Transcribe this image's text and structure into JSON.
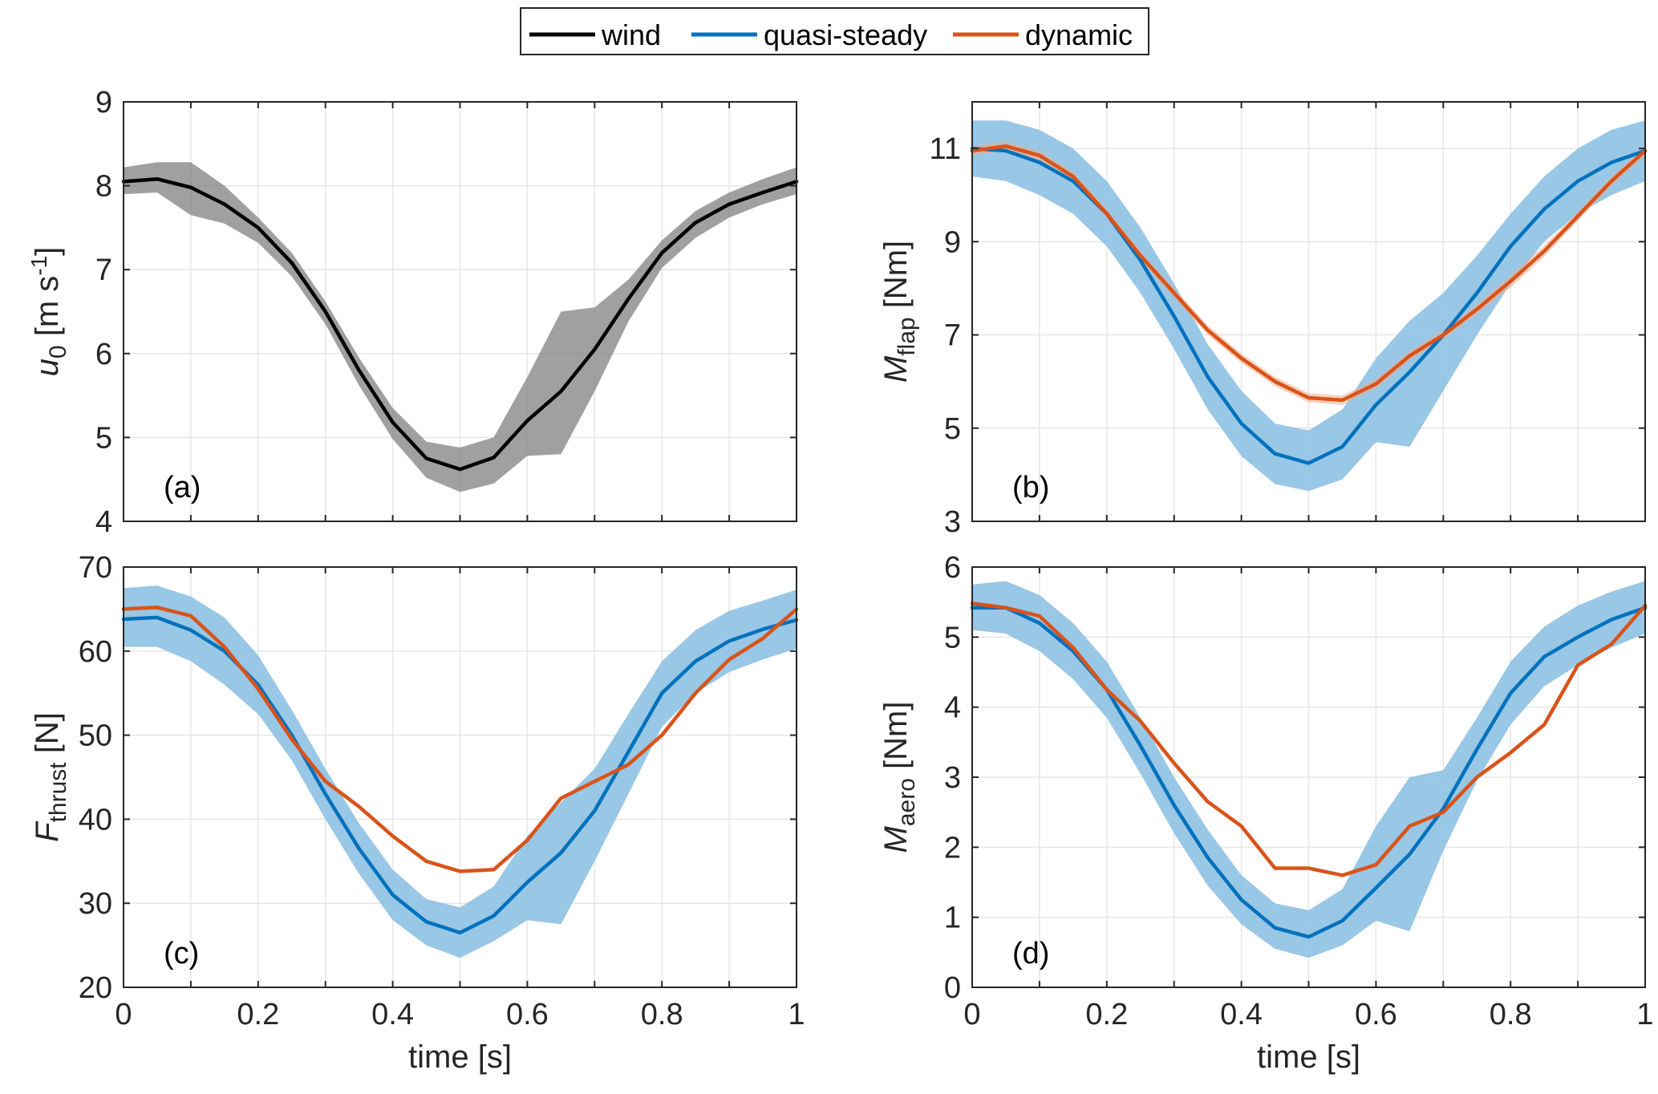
{
  "legend": {
    "location": "top-center",
    "entries": [
      {
        "key": "wind",
        "label": "wind",
        "color": "#000000"
      },
      {
        "key": "qs",
        "label": "quasi-steady",
        "color": "#0072BD"
      },
      {
        "key": "dyn",
        "label": "dynamic",
        "color": "#D95319"
      }
    ]
  },
  "colors": {
    "wind_band": "#808080",
    "qs_band": "#8EC1E3",
    "dyn_band": "#F2A98A",
    "grid": "#E6E6E6",
    "axis": "#262626"
  },
  "chart_data": [
    {
      "id": "a",
      "type": "line",
      "panel_label": "(a)",
      "ylabel": {
        "main": "u",
        "sub": "0",
        "unit_pre": " [m s",
        "sup": "-1",
        "unit_post": "]"
      },
      "xlabel": "",
      "xlim": [
        0,
        1
      ],
      "ylim": [
        4,
        9
      ],
      "xticks": [
        0,
        0.1,
        0.2,
        0.3,
        0.4,
        0.5,
        0.6,
        0.7,
        0.8,
        0.9,
        1
      ],
      "xtick_labels": [],
      "yticks": [
        4,
        5,
        6,
        7,
        8,
        9
      ],
      "ytick_labels": [
        "4",
        "5",
        "6",
        "7",
        "8",
        "9"
      ],
      "grid": true,
      "series": [
        {
          "name": "wind",
          "key": "wind",
          "x": [
            0,
            0.05,
            0.1,
            0.15,
            0.2,
            0.25,
            0.3,
            0.35,
            0.4,
            0.45,
            0.5,
            0.55,
            0.6,
            0.65,
            0.7,
            0.75,
            0.8,
            0.85,
            0.9,
            0.95,
            1
          ],
          "y": [
            8.05,
            8.08,
            7.98,
            7.78,
            7.5,
            7.08,
            6.5,
            5.8,
            5.18,
            4.75,
            4.62,
            4.76,
            5.2,
            5.55,
            6.05,
            6.65,
            7.2,
            7.56,
            7.78,
            7.92,
            8.05
          ],
          "band_upper": [
            8.22,
            8.28,
            8.28,
            8.0,
            7.62,
            7.2,
            6.62,
            5.95,
            5.35,
            4.95,
            4.88,
            5.0,
            5.72,
            6.5,
            6.55,
            6.88,
            7.35,
            7.7,
            7.92,
            8.08,
            8.22
          ],
          "band_lower": [
            7.9,
            7.92,
            7.65,
            7.55,
            7.32,
            6.92,
            6.35,
            5.62,
            4.98,
            4.52,
            4.35,
            4.45,
            4.78,
            4.8,
            5.55,
            6.38,
            7.02,
            7.38,
            7.62,
            7.78,
            7.9
          ]
        }
      ]
    },
    {
      "id": "b",
      "type": "line",
      "panel_label": "(b)",
      "ylabel": {
        "main": "M",
        "sub": "flap",
        "unit_pre": " [Nm]",
        "sup": "",
        "unit_post": ""
      },
      "xlabel": "",
      "xlim": [
        0,
        1
      ],
      "ylim": [
        3,
        12
      ],
      "xticks": [
        0,
        0.1,
        0.2,
        0.3,
        0.4,
        0.5,
        0.6,
        0.7,
        0.8,
        0.9,
        1
      ],
      "xtick_labels": [],
      "yticks": [
        3,
        5,
        7,
        9,
        11
      ],
      "ytick_labels": [
        "3",
        "5",
        "7",
        "9",
        "11"
      ],
      "grid": true,
      "series": [
        {
          "name": "quasi-steady",
          "key": "qs",
          "x": [
            0,
            0.05,
            0.1,
            0.15,
            0.2,
            0.25,
            0.3,
            0.35,
            0.4,
            0.45,
            0.5,
            0.55,
            0.6,
            0.65,
            0.7,
            0.75,
            0.8,
            0.85,
            0.9,
            0.95,
            1
          ],
          "y": [
            11.0,
            10.95,
            10.7,
            10.3,
            9.6,
            8.6,
            7.4,
            6.1,
            5.1,
            4.45,
            4.25,
            4.6,
            5.5,
            6.2,
            7.0,
            7.9,
            8.9,
            9.7,
            10.3,
            10.7,
            10.95
          ],
          "band_upper": [
            11.6,
            11.6,
            11.4,
            11.0,
            10.3,
            9.3,
            8.1,
            6.8,
            5.8,
            5.1,
            4.95,
            5.4,
            6.5,
            7.3,
            7.9,
            8.7,
            9.6,
            10.4,
            11.0,
            11.4,
            11.6
          ],
          "band_lower": [
            10.4,
            10.3,
            10.0,
            9.6,
            8.9,
            7.9,
            6.7,
            5.4,
            4.4,
            3.8,
            3.65,
            3.9,
            4.7,
            4.6,
            5.8,
            7.0,
            8.1,
            9.0,
            9.6,
            10.0,
            10.3
          ]
        },
        {
          "name": "dynamic",
          "key": "dyn",
          "x": [
            0,
            0.05,
            0.1,
            0.15,
            0.2,
            0.25,
            0.3,
            0.35,
            0.4,
            0.45,
            0.5,
            0.55,
            0.6,
            0.65,
            0.7,
            0.75,
            0.8,
            0.85,
            0.9,
            0.95,
            1
          ],
          "y": [
            10.95,
            11.05,
            10.85,
            10.4,
            9.6,
            8.7,
            7.9,
            7.1,
            6.5,
            6.0,
            5.65,
            5.6,
            5.95,
            6.55,
            7.0,
            7.55,
            8.15,
            8.8,
            9.55,
            10.3,
            10.95
          ],
          "band_upper": [
            11.05,
            11.15,
            10.95,
            10.5,
            9.7,
            8.8,
            8.0,
            7.2,
            6.6,
            6.1,
            5.75,
            5.7,
            6.05,
            6.65,
            7.1,
            7.65,
            8.28,
            8.92,
            9.65,
            10.4,
            11.05
          ],
          "band_lower": [
            10.85,
            10.95,
            10.75,
            10.3,
            9.5,
            8.6,
            7.8,
            7.0,
            6.4,
            5.9,
            5.55,
            5.5,
            5.85,
            6.45,
            6.9,
            7.45,
            8.02,
            8.68,
            9.45,
            10.2,
            10.85
          ]
        }
      ]
    },
    {
      "id": "c",
      "type": "line",
      "panel_label": "(c)",
      "ylabel": {
        "main": "F",
        "sub": "thrust",
        "unit_pre": " [N]",
        "sup": "",
        "unit_post": ""
      },
      "xlabel": "time [s]",
      "xlim": [
        0,
        1
      ],
      "ylim": [
        20,
        70
      ],
      "xticks": [
        0,
        0.1,
        0.2,
        0.3,
        0.4,
        0.5,
        0.6,
        0.7,
        0.8,
        0.9,
        1
      ],
      "xtick_labels": [
        "0",
        "",
        "0.2",
        "",
        "0.4",
        "",
        "0.6",
        "",
        "0.8",
        "",
        "1"
      ],
      "yticks": [
        20,
        30,
        40,
        50,
        60,
        70
      ],
      "ytick_labels": [
        "20",
        "30",
        "40",
        "50",
        "60",
        "70"
      ],
      "grid": true,
      "series": [
        {
          "name": "quasi-steady",
          "key": "qs",
          "x": [
            0,
            0.05,
            0.1,
            0.15,
            0.2,
            0.25,
            0.3,
            0.35,
            0.4,
            0.45,
            0.5,
            0.55,
            0.6,
            0.65,
            0.7,
            0.75,
            0.8,
            0.85,
            0.9,
            0.95,
            1
          ],
          "y": [
            63.8,
            64.0,
            62.5,
            60.0,
            56.0,
            50.0,
            43.0,
            36.5,
            31.0,
            27.8,
            26.5,
            28.5,
            32.5,
            36.0,
            41.0,
            48.0,
            55.0,
            58.8,
            61.2,
            62.6,
            63.7
          ],
          "band_upper": [
            67.5,
            67.8,
            66.5,
            64.0,
            59.5,
            53.0,
            46.0,
            39.5,
            34.0,
            30.5,
            29.5,
            32.0,
            38.0,
            42.0,
            46.0,
            52.5,
            58.8,
            62.5,
            64.8,
            66.0,
            67.3
          ],
          "band_lower": [
            60.5,
            60.5,
            58.8,
            56.0,
            52.5,
            47.0,
            40.0,
            33.5,
            28.0,
            25.0,
            23.5,
            25.5,
            28.0,
            27.5,
            35.0,
            43.0,
            51.0,
            55.0,
            57.5,
            59.0,
            60.3
          ]
        },
        {
          "name": "dynamic",
          "key": "dyn",
          "x": [
            0,
            0.05,
            0.1,
            0.15,
            0.2,
            0.25,
            0.3,
            0.35,
            0.4,
            0.45,
            0.5,
            0.55,
            0.6,
            0.65,
            0.7,
            0.75,
            0.8,
            0.85,
            0.9,
            0.95,
            1
          ],
          "y": [
            65.0,
            65.2,
            64.2,
            60.5,
            55.5,
            49.5,
            44.5,
            41.5,
            38.0,
            35.0,
            33.8,
            34.0,
            37.5,
            42.5,
            44.5,
            46.5,
            50.0,
            55.0,
            59.0,
            61.5,
            65.0
          ]
        }
      ]
    },
    {
      "id": "d",
      "type": "line",
      "panel_label": "(d)",
      "ylabel": {
        "main": "M",
        "sub": "aero",
        "unit_pre": " [Nm]",
        "sup": "",
        "unit_post": ""
      },
      "xlabel": "time [s]",
      "xlim": [
        0,
        1
      ],
      "ylim": [
        0,
        6
      ],
      "xticks": [
        0,
        0.1,
        0.2,
        0.3,
        0.4,
        0.5,
        0.6,
        0.7,
        0.8,
        0.9,
        1
      ],
      "xtick_labels": [
        "0",
        "",
        "0.2",
        "",
        "0.4",
        "",
        "0.6",
        "",
        "0.8",
        "",
        "1"
      ],
      "yticks": [
        0,
        1,
        2,
        3,
        4,
        5,
        6
      ],
      "ytick_labels": [
        "0",
        "1",
        "2",
        "3",
        "4",
        "5",
        "6"
      ],
      "grid": true,
      "series": [
        {
          "name": "quasi-steady",
          "key": "qs",
          "x": [
            0,
            0.05,
            0.1,
            0.15,
            0.2,
            0.25,
            0.3,
            0.35,
            0.4,
            0.45,
            0.5,
            0.55,
            0.6,
            0.65,
            0.7,
            0.75,
            0.8,
            0.85,
            0.9,
            0.95,
            1
          ],
          "y": [
            5.42,
            5.42,
            5.2,
            4.8,
            4.25,
            3.45,
            2.6,
            1.85,
            1.25,
            0.85,
            0.72,
            0.95,
            1.42,
            1.9,
            2.55,
            3.4,
            4.2,
            4.72,
            5.0,
            5.25,
            5.42
          ],
          "band_upper": [
            5.75,
            5.8,
            5.6,
            5.2,
            4.65,
            3.85,
            3.0,
            2.25,
            1.6,
            1.2,
            1.1,
            1.4,
            2.3,
            3.0,
            3.1,
            3.85,
            4.65,
            5.15,
            5.45,
            5.65,
            5.8
          ],
          "band_lower": [
            5.1,
            5.05,
            4.8,
            4.4,
            3.85,
            3.05,
            2.2,
            1.45,
            0.9,
            0.55,
            0.42,
            0.6,
            0.95,
            0.8,
            1.95,
            2.95,
            3.75,
            4.3,
            4.6,
            4.85,
            5.05
          ]
        },
        {
          "name": "dynamic",
          "key": "dyn",
          "x": [
            0,
            0.05,
            0.1,
            0.15,
            0.2,
            0.25,
            0.3,
            0.35,
            0.4,
            0.45,
            0.5,
            0.55,
            0.6,
            0.65,
            0.7,
            0.75,
            0.8,
            0.85,
            0.9,
            0.95,
            1
          ],
          "y": [
            5.48,
            5.42,
            5.3,
            4.85,
            4.25,
            3.8,
            3.2,
            2.65,
            2.3,
            1.7,
            1.7,
            1.6,
            1.75,
            2.3,
            2.5,
            3.0,
            3.35,
            3.75,
            4.6,
            4.9,
            5.45
          ]
        }
      ]
    }
  ]
}
